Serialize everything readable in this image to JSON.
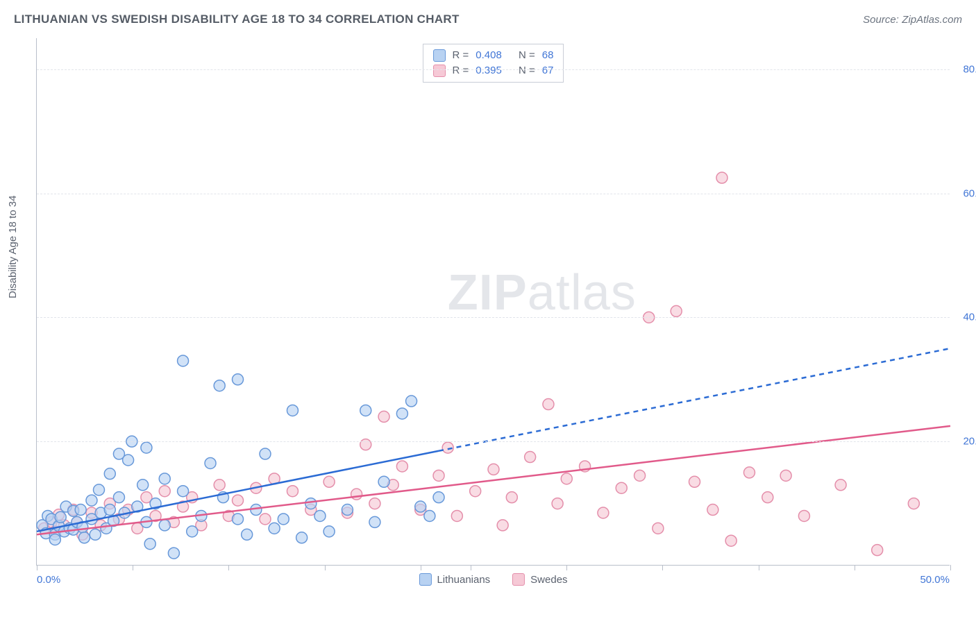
{
  "header": {
    "title": "LITHUANIAN VS SWEDISH DISABILITY AGE 18 TO 34 CORRELATION CHART",
    "source_label": "Source:",
    "source_name": "ZipAtlas.com"
  },
  "watermark": {
    "prefix": "ZIP",
    "suffix": "atlas"
  },
  "chart": {
    "type": "scatter",
    "ylabel": "Disability Age 18 to 34",
    "xlim": [
      0,
      50
    ],
    "ylim": [
      0,
      85
    ],
    "xtick_left_label": "0.0%",
    "xtick_right_label": "50.0%",
    "xtick_positions_pct": [
      0,
      10.5,
      21,
      31.5,
      42,
      47.5,
      58,
      68.5,
      79,
      89.5,
      100
    ],
    "ytick_labels": [
      "20.0%",
      "40.0%",
      "60.0%",
      "80.0%"
    ],
    "ytick_values": [
      20,
      40,
      60,
      80
    ],
    "grid_color": "#e1e4ea",
    "axis_color": "#b9bfca",
    "background_color": "#ffffff",
    "label_color": "#4176d6",
    "marker_radius": 8,
    "marker_stroke_width": 1.5,
    "trend_line_width": 2.5,
    "series": {
      "lithuanians": {
        "label": "Lithuanians",
        "fill": "#b8d2f2",
        "stroke": "#6798d9",
        "line_color": "#2b6bd4",
        "legend_R_label": "R =",
        "legend_R_value": "0.408",
        "legend_N_label": "N =",
        "legend_N_value": "68",
        "trend": {
          "x1": 0,
          "y1": 5.5,
          "x2": 50,
          "y2": 35,
          "solid_until_x": 22
        },
        "points": [
          [
            0.3,
            6.5
          ],
          [
            0.5,
            5.2
          ],
          [
            0.6,
            8.0
          ],
          [
            0.8,
            7.5
          ],
          [
            1.0,
            5.0
          ],
          [
            1.0,
            4.2
          ],
          [
            1.2,
            6.4
          ],
          [
            1.3,
            7.8
          ],
          [
            1.5,
            5.5
          ],
          [
            1.6,
            9.5
          ],
          [
            1.8,
            6.0
          ],
          [
            2.0,
            8.8
          ],
          [
            2.0,
            5.8
          ],
          [
            2.2,
            7.0
          ],
          [
            2.4,
            9.0
          ],
          [
            2.5,
            6.2
          ],
          [
            2.6,
            4.5
          ],
          [
            3.0,
            10.5
          ],
          [
            3.0,
            7.5
          ],
          [
            3.2,
            5.0
          ],
          [
            3.4,
            12.2
          ],
          [
            3.5,
            8.5
          ],
          [
            3.8,
            6.0
          ],
          [
            4.0,
            14.8
          ],
          [
            4.0,
            9.0
          ],
          [
            4.2,
            7.2
          ],
          [
            4.5,
            18.0
          ],
          [
            4.5,
            11.0
          ],
          [
            4.8,
            8.5
          ],
          [
            5.0,
            17.0
          ],
          [
            5.2,
            20.0
          ],
          [
            5.5,
            9.5
          ],
          [
            5.8,
            13.0
          ],
          [
            6.0,
            7.0
          ],
          [
            6.0,
            19.0
          ],
          [
            6.2,
            3.5
          ],
          [
            6.5,
            10.0
          ],
          [
            7.0,
            14.0
          ],
          [
            7.0,
            6.5
          ],
          [
            7.5,
            2.0
          ],
          [
            8.0,
            12.0
          ],
          [
            8.0,
            33.0
          ],
          [
            8.5,
            5.5
          ],
          [
            9.0,
            8.0
          ],
          [
            9.5,
            16.5
          ],
          [
            10.0,
            29.0
          ],
          [
            10.2,
            11.0
          ],
          [
            11.0,
            30.0
          ],
          [
            11.0,
            7.5
          ],
          [
            11.5,
            5.0
          ],
          [
            12.0,
            9.0
          ],
          [
            12.5,
            18.0
          ],
          [
            13.0,
            6.0
          ],
          [
            13.5,
            7.5
          ],
          [
            14.0,
            25.0
          ],
          [
            14.5,
            4.5
          ],
          [
            15.0,
            10.0
          ],
          [
            15.5,
            8.0
          ],
          [
            16.0,
            5.5
          ],
          [
            17.0,
            9.0
          ],
          [
            18.0,
            25.0
          ],
          [
            18.5,
            7.0
          ],
          [
            19.0,
            13.5
          ],
          [
            20.0,
            24.5
          ],
          [
            20.5,
            26.5
          ],
          [
            21.0,
            9.5
          ],
          [
            21.5,
            8.0
          ],
          [
            22.0,
            11.0
          ]
        ]
      },
      "swedes": {
        "label": "Swedes",
        "fill": "#f6c9d6",
        "stroke": "#e48eaa",
        "line_color": "#e15a8a",
        "legend_R_label": "R =",
        "legend_R_value": "0.395",
        "legend_N_label": "N =",
        "legend_N_value": "67",
        "trend": {
          "x1": 0,
          "y1": 5.0,
          "x2": 50,
          "y2": 22.5,
          "solid_until_x": 50
        },
        "points": [
          [
            0.4,
            6.0
          ],
          [
            0.8,
            7.0
          ],
          [
            1.0,
            5.5
          ],
          [
            1.2,
            8.2
          ],
          [
            1.5,
            6.5
          ],
          [
            2.0,
            9.0
          ],
          [
            2.2,
            7.0
          ],
          [
            2.5,
            5.0
          ],
          [
            3.0,
            8.5
          ],
          [
            3.5,
            6.5
          ],
          [
            4.0,
            10.0
          ],
          [
            4.5,
            7.5
          ],
          [
            5.0,
            9.0
          ],
          [
            5.5,
            6.0
          ],
          [
            6.0,
            11.0
          ],
          [
            6.5,
            8.0
          ],
          [
            7.0,
            12.0
          ],
          [
            7.5,
            7.0
          ],
          [
            8.0,
            9.5
          ],
          [
            8.5,
            11.0
          ],
          [
            9.0,
            6.5
          ],
          [
            10.0,
            13.0
          ],
          [
            10.5,
            8.0
          ],
          [
            11.0,
            10.5
          ],
          [
            12.0,
            12.5
          ],
          [
            12.5,
            7.5
          ],
          [
            13.0,
            14.0
          ],
          [
            14.0,
            12.0
          ],
          [
            15.0,
            9.0
          ],
          [
            16.0,
            13.5
          ],
          [
            17.0,
            8.5
          ],
          [
            17.5,
            11.5
          ],
          [
            18.0,
            19.5
          ],
          [
            18.5,
            10.0
          ],
          [
            19.0,
            24.0
          ],
          [
            19.5,
            13.0
          ],
          [
            20.0,
            16.0
          ],
          [
            21.0,
            9.0
          ],
          [
            22.0,
            14.5
          ],
          [
            22.5,
            19.0
          ],
          [
            23.0,
            8.0
          ],
          [
            24.0,
            12.0
          ],
          [
            25.0,
            15.5
          ],
          [
            25.5,
            6.5
          ],
          [
            26.0,
            11.0
          ],
          [
            27.0,
            17.5
          ],
          [
            28.0,
            26.0
          ],
          [
            28.5,
            10.0
          ],
          [
            29.0,
            14.0
          ],
          [
            30.0,
            16.0
          ],
          [
            31.0,
            8.5
          ],
          [
            32.0,
            12.5
          ],
          [
            33.0,
            14.5
          ],
          [
            33.5,
            40.0
          ],
          [
            35.0,
            41.0
          ],
          [
            34.0,
            6.0
          ],
          [
            36.0,
            13.5
          ],
          [
            37.0,
            9.0
          ],
          [
            38.0,
            4.0
          ],
          [
            39.0,
            15.0
          ],
          [
            40.0,
            11.0
          ],
          [
            41.0,
            14.5
          ],
          [
            42.0,
            8.0
          ],
          [
            44.0,
            13.0
          ],
          [
            37.5,
            62.5
          ],
          [
            46.0,
            2.5
          ],
          [
            48.0,
            10.0
          ]
        ]
      }
    }
  }
}
